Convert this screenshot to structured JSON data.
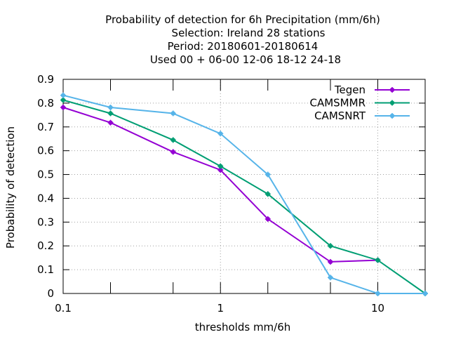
{
  "chart_data": {
    "type": "line",
    "title_lines": [
      "Probability of detection  for 6h Precipitation (mm/6h)",
      "Selection: Ireland      28 stations",
      "Period: 20180601-20180614",
      "Used  00 + 06-00 12-06 18-12 24-18"
    ],
    "xlabel": "thresholds mm/6h",
    "ylabel": "Probability of detection",
    "x_scale": "log",
    "xlim": [
      0.1,
      20
    ],
    "ylim": [
      0,
      0.9
    ],
    "x_ticks": [
      0.1,
      1,
      10
    ],
    "x_tick_labels": [
      "0.1",
      "1",
      "10"
    ],
    "x_minor_ticks": [
      0.2,
      0.5,
      2,
      5,
      20
    ],
    "y_ticks": [
      0,
      0.1,
      0.2,
      0.3,
      0.4,
      0.5,
      0.6,
      0.7,
      0.8,
      0.9
    ],
    "y_tick_labels": [
      "0",
      "0.1",
      "0.2",
      "0.3",
      "0.4",
      "0.5",
      "0.6",
      "0.7",
      "0.8",
      "0.9"
    ],
    "grid": true,
    "legend_position": "top-right",
    "x": [
      0.1,
      0.2,
      0.5,
      1,
      2,
      5,
      10,
      20
    ],
    "series": [
      {
        "name": "Tegen",
        "color": "#9400d3",
        "values": [
          0.782,
          0.718,
          0.595,
          0.519,
          0.313,
          0.133,
          0.14,
          null
        ]
      },
      {
        "name": "CAMSMMR",
        "color": "#009e73",
        "values": [
          0.813,
          0.757,
          0.645,
          0.535,
          0.418,
          0.2,
          0.14,
          0.0
        ]
      },
      {
        "name": "CAMSNRT",
        "color": "#56b4e9",
        "values": [
          0.833,
          0.782,
          0.757,
          0.672,
          0.5,
          0.067,
          0.0,
          0.0
        ]
      }
    ]
  }
}
